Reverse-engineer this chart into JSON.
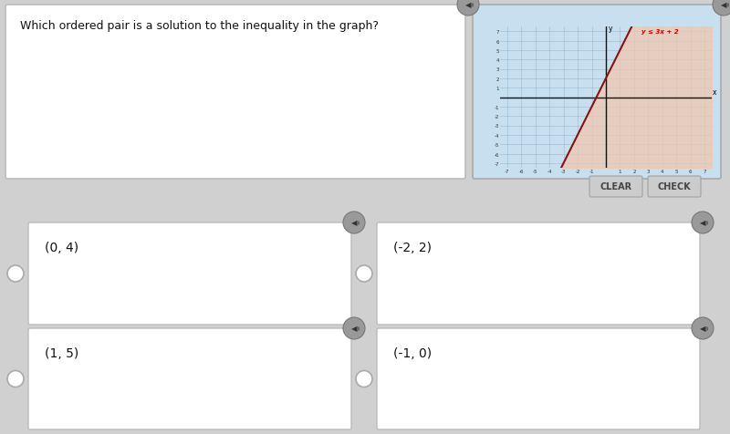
{
  "bg_color": "#d0d0d0",
  "question_text": "Which ordered pair is a solution to the inequality in the graph?",
  "question_box_bg": "#ffffff",
  "question_box_border": "#bbbbbb",
  "graph_bg": "#c8dff0",
  "graph_shade_color": "#f0c8b0",
  "graph_line_color": "#8b1010",
  "graph_axis_color": "#111111",
  "graph_grid_color": "#9ab8cc",
  "inequality_label": "y ≤ 3x + 2",
  "inequality_color": "#cc0000",
  "choices": [
    "(0, 4)",
    "(-2, 2)",
    "(1, 5)",
    "(-1, 0)"
  ],
  "choice_box_bg": "#ffffff",
  "choice_box_border": "#bbbbbb",
  "button_clear_text": "CLEAR",
  "button_check_text": "CHECK",
  "button_bg": "#cccccc",
  "button_border": "#aaaaaa",
  "button_text_color": "#444444",
  "speaker_bg": "#999999",
  "speaker_fg": "#333333"
}
